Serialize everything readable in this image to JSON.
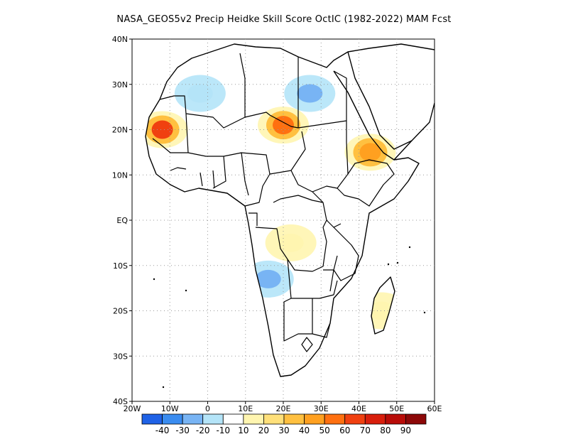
{
  "title": "NASA_GEOS5v2 Precip Heidke Skill Score OctIC (1982-2022) MAM Fcst",
  "map": {
    "lon_range": [
      -20,
      60
    ],
    "lat_range": [
      -40,
      40
    ],
    "lon_ticks": [
      "20W",
      "10W",
      "0",
      "10E",
      "20E",
      "30E",
      "40E",
      "50E",
      "60E"
    ],
    "lat_ticks": [
      "40N",
      "30N",
      "20N",
      "10N",
      "EQ",
      "10S",
      "20S",
      "30S",
      "40S"
    ],
    "grid": "dotted"
  },
  "colorbar": {
    "labels": [
      "-40",
      "-30",
      "-20",
      "-10",
      "10",
      "20",
      "30",
      "40",
      "50",
      "60",
      "70",
      "80",
      "90"
    ],
    "colors": [
      "#1f62e6",
      "#3a8cf0",
      "#78b4f4",
      "#b4e4f8",
      "#ffffff",
      "#fff5b0",
      "#ffe07a",
      "#ffc040",
      "#ffa020",
      "#ff7010",
      "#f04010",
      "#d81e0c",
      "#b80c08",
      "#8c0808"
    ]
  },
  "regions": [
    {
      "name": "mauritania-high",
      "lon": -12,
      "lat": 20,
      "value": 70
    },
    {
      "name": "chad-high",
      "lon": 20,
      "lat": 21,
      "value": 60
    },
    {
      "name": "ethiopia-high",
      "lon": 43,
      "lat": 15,
      "value": 50
    },
    {
      "name": "egypt-low",
      "lon": 27,
      "lat": 28,
      "value": -20
    },
    {
      "name": "algeria-low",
      "lon": -2,
      "lat": 28,
      "value": -10
    },
    {
      "name": "angola-low",
      "lon": 16,
      "lat": -13,
      "value": -20
    },
    {
      "name": "congo-mid",
      "lon": 22,
      "lat": -5,
      "value": 20
    },
    {
      "name": "madagascar-mid",
      "lon": 46,
      "lat": -20,
      "value": 20
    }
  ]
}
